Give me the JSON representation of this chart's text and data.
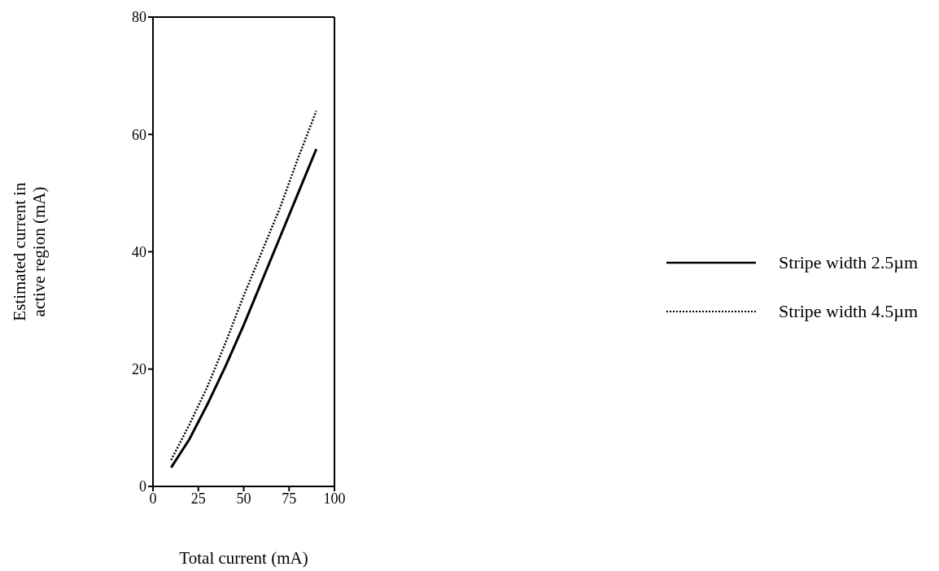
{
  "chart_data": {
    "type": "line",
    "xlabel": "Total current (mA)",
    "ylabel": "Estimated current in\nactive region (mA)",
    "x": [
      10,
      20,
      30,
      40,
      50,
      60,
      70,
      80,
      90
    ],
    "series": [
      {
        "name": "Stripe width 2.5µm",
        "color": "#000000",
        "line_style": "solid",
        "values": [
          3.2,
          8,
          14,
          20.5,
          27.5,
          35,
          42.5,
          50,
          57.5
        ]
      },
      {
        "name": "Stripe width 4.5µm",
        "color": "#000000",
        "line_style": "dotted",
        "values": [
          4.5,
          10.5,
          17,
          24.5,
          32.5,
          40,
          47.5,
          56,
          64
        ]
      }
    ],
    "xlim": [
      0,
      100
    ],
    "xticks": [
      0,
      25,
      50,
      75,
      100
    ],
    "ylim": [
      0,
      80
    ],
    "yticks": [
      0,
      20,
      40,
      60,
      80
    ],
    "grid": false,
    "legend": "right",
    "marker": "none"
  }
}
